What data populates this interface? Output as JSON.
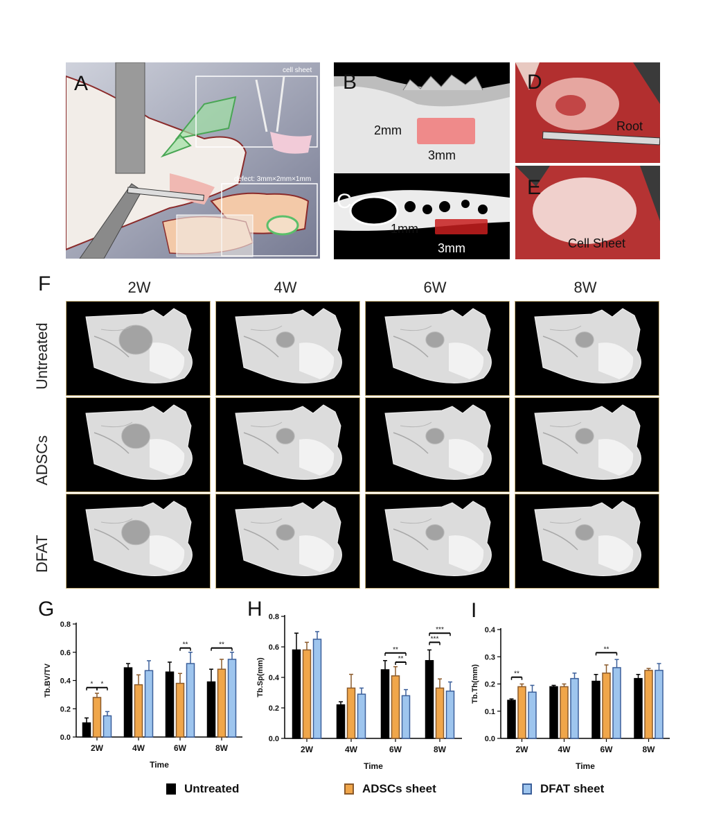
{
  "figure": {
    "panel_labels": [
      "A",
      "B",
      "C",
      "D",
      "E",
      "F",
      "G",
      "H",
      "I"
    ],
    "panel_a": {
      "cell_sheet_label": "cell sheet",
      "defect_label": "defect: 3mm×2mm×1mm"
    },
    "panel_b": {
      "height_label": "2mm",
      "width_label": "3mm"
    },
    "panel_c": {
      "depth_label": "1mm",
      "width_label": "3mm"
    },
    "panel_d": {
      "root_label": "Root"
    },
    "panel_e": {
      "sheet_label": "Cell Sheet"
    },
    "grid": {
      "columns": [
        "2W",
        "4W",
        "6W",
        "8W"
      ],
      "rows": [
        "Untreated",
        "ADSCs",
        "DFAT"
      ]
    }
  },
  "legend": {
    "items": [
      {
        "label": "Untreated",
        "color": "#000000",
        "border": "#000000"
      },
      {
        "label": "ADSCs sheet",
        "color": "#f0a64a",
        "border": "#8b5a2b"
      },
      {
        "label": "DFAT sheet",
        "color": "#9ec5ee",
        "border": "#3b5f9a"
      }
    ]
  },
  "chart_data": [
    {
      "id": "G",
      "type": "bar",
      "title": "",
      "xlabel": "Time",
      "ylabel": "Tb.BV/TV",
      "categories": [
        "2W",
        "4W",
        "6W",
        "8W"
      ],
      "ylim": [
        0,
        0.8
      ],
      "yticks": [
        0.0,
        0.2,
        0.4,
        0.6,
        0.8
      ],
      "tick_labels": [
        "0.0",
        "0.2",
        "0.4",
        "0.6",
        "0.8"
      ],
      "series": [
        {
          "name": "Untreated",
          "values": [
            0.1,
            0.49,
            0.46,
            0.39
          ],
          "errors": [
            0.035,
            0.03,
            0.07,
            0.09
          ]
        },
        {
          "name": "ADSCs sheet",
          "values": [
            0.28,
            0.37,
            0.38,
            0.48
          ],
          "errors": [
            0.03,
            0.07,
            0.07,
            0.07
          ]
        },
        {
          "name": "DFAT sheet",
          "values": [
            0.15,
            0.47,
            0.52,
            0.55
          ],
          "errors": [
            0.03,
            0.07,
            0.08,
            0.05
          ]
        }
      ],
      "significance": [
        {
          "group": 0,
          "from": 0,
          "to": 1,
          "label": "*",
          "level": 0.35
        },
        {
          "group": 0,
          "from": 1,
          "to": 2,
          "label": "*",
          "level": 0.35
        },
        {
          "group": 2,
          "from": 1,
          "to": 2,
          "label": "**",
          "level": 0.63
        },
        {
          "group": 3,
          "from": 0,
          "to": 2,
          "label": "**",
          "level": 0.63
        }
      ]
    },
    {
      "id": "H",
      "type": "bar",
      "title": "",
      "xlabel": "Time",
      "ylabel": "Tb.Sp(mm)",
      "categories": [
        "2W",
        "4W",
        "6W",
        "8W"
      ],
      "ylim": [
        0,
        0.8
      ],
      "yticks": [
        0.0,
        0.2,
        0.4,
        0.6,
        0.8
      ],
      "tick_labels": [
        "0.0",
        "0.2",
        "0.4",
        "0.6",
        "0.8"
      ],
      "series": [
        {
          "name": "Untreated",
          "values": [
            0.58,
            0.22,
            0.45,
            0.51
          ],
          "errors": [
            0.11,
            0.02,
            0.06,
            0.07
          ]
        },
        {
          "name": "ADSCs sheet",
          "values": [
            0.58,
            0.33,
            0.41,
            0.33
          ],
          "errors": [
            0.05,
            0.09,
            0.06,
            0.06
          ]
        },
        {
          "name": "DFAT sheet",
          "values": [
            0.65,
            0.29,
            0.28,
            0.31
          ],
          "errors": [
            0.05,
            0.04,
            0.04,
            0.06
          ]
        }
      ],
      "significance": [
        {
          "group": 2,
          "from": 0,
          "to": 2,
          "label": "**",
          "level": 0.56
        },
        {
          "group": 2,
          "from": 1,
          "to": 2,
          "label": "**",
          "level": 0.5
        },
        {
          "group": 3,
          "from": 0,
          "to": 2,
          "label": "***",
          "level": 0.69
        },
        {
          "group": 3,
          "from": 0,
          "to": 1,
          "label": "***",
          "level": 0.63
        }
      ]
    },
    {
      "id": "I",
      "type": "bar",
      "title": "",
      "xlabel": "Time",
      "ylabel": "Tb.Th(mm)",
      "categories": [
        "2W",
        "4W",
        "6W",
        "8W"
      ],
      "ylim": [
        0,
        0.4
      ],
      "yticks": [
        0.0,
        0.1,
        0.2,
        0.3,
        0.4
      ],
      "tick_labels": [
        "0.0",
        "0.1",
        "0.2",
        "0.3",
        "0.4"
      ],
      "series": [
        {
          "name": "Untreated",
          "values": [
            0.14,
            0.19,
            0.21,
            0.22
          ],
          "errors": [
            0.005,
            0.005,
            0.025,
            0.015
          ]
        },
        {
          "name": "ADSCs sheet",
          "values": [
            0.19,
            0.19,
            0.24,
            0.25
          ],
          "errors": [
            0.01,
            0.01,
            0.03,
            0.007
          ]
        },
        {
          "name": "DFAT sheet",
          "values": [
            0.17,
            0.22,
            0.26,
            0.25
          ],
          "errors": [
            0.025,
            0.02,
            0.03,
            0.025
          ]
        }
      ],
      "significance": [
        {
          "group": 0,
          "from": 0,
          "to": 1,
          "label": "**",
          "level": 0.225
        },
        {
          "group": 2,
          "from": 0,
          "to": 2,
          "label": "**",
          "level": 0.315
        }
      ]
    }
  ]
}
